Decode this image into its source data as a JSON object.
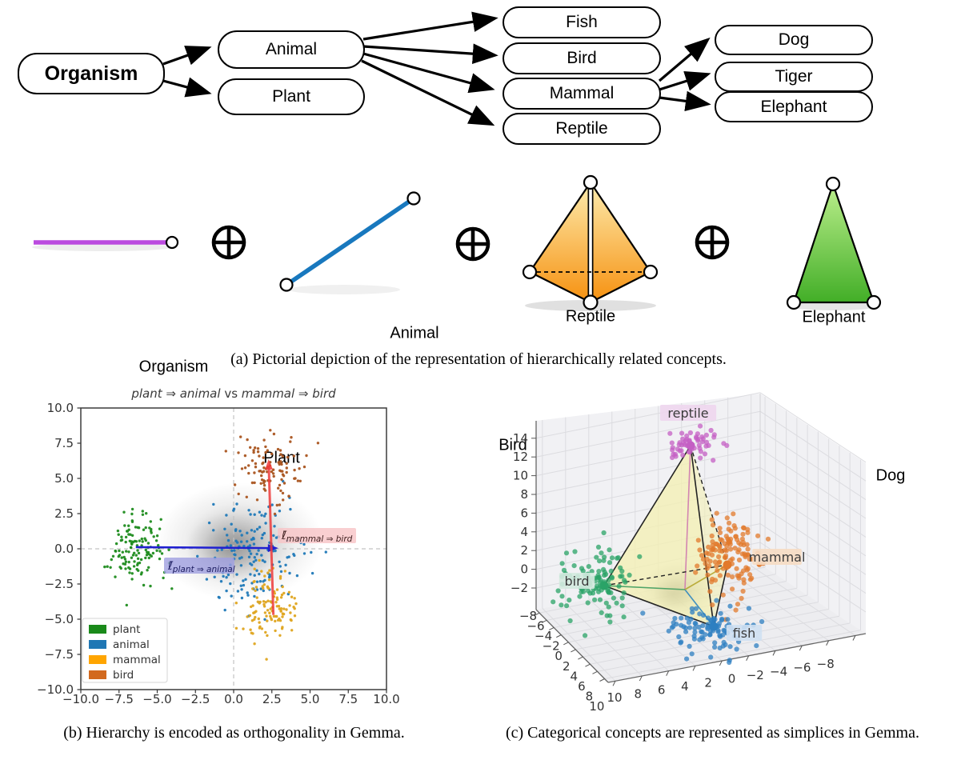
{
  "figure": {
    "caption_a": "(a) Pictorial depiction of the representation of hierarchically related concepts.",
    "caption_b": "(b) Hierarchy is encoded as orthogonality in Gemma.",
    "caption_c": "(c) Categorical concepts are represented as simplices in Gemma."
  },
  "tree": {
    "organism": "Organism",
    "animal": "Animal",
    "plant": "Plant",
    "fish": "Fish",
    "bird": "Bird",
    "mammal": "Mammal",
    "reptile": "Reptile",
    "dog": "Dog",
    "tiger": "Tiger",
    "elephant": "Elephant"
  },
  "pictorial": {
    "oplus_symbol": "⊕",
    "organism_label": "Organism",
    "animal_label": "Animal",
    "plant_label": "Plant",
    "reptile_label": "Reptile",
    "bird_label": "Bird",
    "mammal_label": "Mammal",
    "fish_label": "Fish",
    "elephant_label": "Elephant",
    "tiger_label": "Tiger",
    "dog_label": "Dog",
    "organism_line_color": "#bb4bdf",
    "plant_animal_segment_color": "#1878be",
    "tetrahedron_gradient_top": "#fdecae",
    "tetrahedron_gradient_bottom": "#f69110",
    "triangle_gradient_top": "#bdef8d",
    "triangle_gradient_bottom": "#42ae27"
  },
  "chart_data": [
    {
      "type": "scatter",
      "title": "plant ⇒ animal vs mammal ⇒ bird",
      "title_parts": [
        {
          "text": "plant ⇒ animal",
          "italic": true
        },
        {
          "text": " vs ",
          "italic": false
        },
        {
          "text": "mammal ⇒ bird",
          "italic": true
        }
      ],
      "xlabel": "",
      "ylabel": "",
      "xlim": [
        -10,
        10
      ],
      "ylim": [
        -10,
        10
      ],
      "xticks": [
        -10.0,
        -7.5,
        -5.0,
        -2.5,
        0.0,
        2.5,
        5.0,
        7.5,
        10.0
      ],
      "xtick_labels": [
        "−10.0",
        "−7.5",
        "−5.0",
        "−2.5",
        "0.0",
        "2.5",
        "5.0",
        "7.5",
        "10.0"
      ],
      "yticks": [
        10.0,
        7.5,
        5.0,
        2.5,
        0.0,
        -2.5,
        -5.0,
        -7.5,
        -10.0
      ],
      "ytick_labels": [
        "10.0",
        "7.5",
        "5.0",
        "2.5",
        "0.0",
        "−2.5",
        "−5.0",
        "−7.5",
        "−10.0"
      ],
      "reference_lines": {
        "x": 0.0,
        "y": 0.0,
        "style": "dashed",
        "color": "#c3c3c3"
      },
      "background_cloud": {
        "center": [
          0.4,
          0.5
        ],
        "spread": [
          2.6,
          2.0
        ],
        "color": "#777777"
      },
      "series": [
        {
          "name": "plant",
          "legend_color": "#1a8a1a",
          "point_color": "#1f8c1f",
          "center": [
            -6.4,
            0.1
          ],
          "spread": [
            0.9,
            1.25
          ],
          "n": 130
        },
        {
          "name": "animal",
          "legend_color": "#1f77b4",
          "point_color": "#2079b8",
          "center": [
            1.3,
            -0.4
          ],
          "spread": [
            1.7,
            1.8
          ],
          "n": 160
        },
        {
          "name": "mammal",
          "legend_color": "#ffa500",
          "point_color": "#dfa520",
          "center": [
            2.2,
            -4.2
          ],
          "spread": [
            0.95,
            1.25
          ],
          "n": 115
        },
        {
          "name": "bird",
          "legend_color": "#d2691e",
          "point_color": "#aa5520",
          "center": [
            2.4,
            5.6
          ],
          "spread": [
            1.15,
            1.15
          ],
          "n": 105
        }
      ],
      "arrows": [
        {
          "name": "plant_to_animal",
          "from": [
            -6.4,
            0.12
          ],
          "to": [
            2.45,
            0.05
          ],
          "color": "#1f1fd0",
          "label_symbol": "ℓ̄",
          "label_subscript": "plant ⇒ animal",
          "label_bg": "#9f9fe0",
          "label_fg": "#1c1c60"
        },
        {
          "name": "mammal_to_bird",
          "from": [
            2.6,
            -4.7
          ],
          "to": [
            2.3,
            5.85
          ],
          "color": "#ee3b3b",
          "label_symbol": "ℓ̄",
          "label_subscript": "mammal ⇒ bird",
          "label_bg": "#f8c3c6",
          "label_fg": "#402020"
        }
      ],
      "legend": {
        "position": "lower left",
        "entries": [
          {
            "label": "plant",
            "color": "#1a8a1a"
          },
          {
            "label": "animal",
            "color": "#1f77b4"
          },
          {
            "label": "mammal",
            "color": "#ffa500"
          },
          {
            "label": "bird",
            "color": "#d2691e"
          }
        ]
      },
      "grid": false
    },
    {
      "type": "scatter3d",
      "title": "",
      "xticks": [
        10,
        8,
        6,
        4,
        2,
        0,
        -2,
        -4,
        -6,
        -8
      ],
      "xtick_labels": [
        "10",
        "8",
        "6",
        "4",
        "2",
        "0",
        "−2",
        "−4",
        "−6",
        "−8"
      ],
      "yticks": [
        -8,
        -6,
        -4,
        -2,
        0,
        2,
        4,
        6,
        8,
        10
      ],
      "ytick_labels": [
        "−8",
        "−6",
        "−4",
        "−2",
        "0",
        "2",
        "4",
        "6",
        "8",
        "10"
      ],
      "zticks": [
        -2,
        0,
        2,
        4,
        6,
        8,
        10,
        12,
        14
      ],
      "ztick_labels": [
        "−2",
        "0",
        "2",
        "4",
        "6",
        "8",
        "10",
        "12",
        "14"
      ],
      "clusters": [
        {
          "name": "reptile",
          "color": "#c45fc4",
          "label_bg": "#eed6ee",
          "center_3d": [
            0,
            -2,
            13
          ],
          "n": 55
        },
        {
          "name": "bird",
          "color": "#2aa367",
          "label_bg": "#d4eadf",
          "center_3d": [
            9,
            2,
            -1
          ],
          "n": 115
        },
        {
          "name": "mammal",
          "color": "#e2792c",
          "label_bg": "#f6dcc3",
          "center_3d": [
            -4,
            3,
            1
          ],
          "n": 135
        },
        {
          "name": "fish",
          "color": "#2d7fc1",
          "label_bg": "#cfe0f2",
          "center_3d": [
            2,
            9,
            -2
          ],
          "n": 100
        }
      ],
      "background_cloud": {
        "center_3d": [
          2,
          2,
          0
        ],
        "color": "#666666"
      },
      "simplex": {
        "fill": "#f3f0b4",
        "vertices": [
          "reptile",
          "bird",
          "fish",
          "mammal"
        ],
        "solid_edges": [
          [
            "reptile",
            "bird"
          ],
          [
            "reptile",
            "fish"
          ],
          [
            "bird",
            "fish"
          ],
          [
            "fish",
            "mammal"
          ]
        ],
        "dashed_edges": [
          [
            "bird",
            "mammal"
          ],
          [
            "reptile",
            "mammal"
          ]
        ],
        "spoke_colors": {
          "reptile": "#cf7ab0",
          "bird": "#3f9d5f",
          "fish": "#2d86c0",
          "mammal": "#b5a62e"
        }
      },
      "grid": true
    }
  ]
}
